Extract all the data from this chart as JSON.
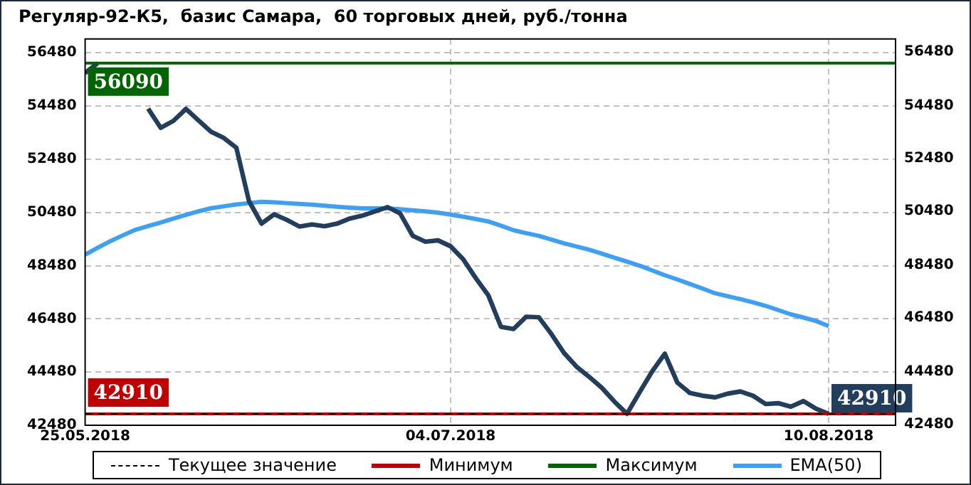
{
  "chart_data": {
    "type": "line",
    "title": "Регуляр-92-К5,  базис Самара,  60 торговых дней, руб./тонна",
    "categories": [
      "25.05.2018",
      null,
      null,
      null,
      null,
      null,
      null,
      null,
      null,
      null,
      null,
      null,
      null,
      null,
      null,
      null,
      null,
      null,
      null,
      null,
      null,
      null,
      null,
      null,
      null,
      null,
      null,
      null,
      null,
      "04.07.2018",
      null,
      null,
      null,
      null,
      null,
      null,
      null,
      null,
      null,
      null,
      null,
      null,
      null,
      null,
      null,
      null,
      null,
      null,
      null,
      null,
      null,
      null,
      null,
      null,
      null,
      null,
      null,
      null,
      null,
      "10.08.2018"
    ],
    "series": [
      {
        "color": "#233d5c",
        "values": [
          55720,
          56090,
          null,
          null,
          null,
          54380,
          53660,
          53920,
          54370,
          53940,
          53510,
          53280,
          52910,
          50910,
          50060,
          50410,
          50200,
          49950,
          50030,
          49960,
          50060,
          50250,
          50360,
          50520,
          50680,
          50440,
          49600,
          49380,
          49430,
          49210,
          48720,
          48010,
          47360,
          46180,
          46100,
          46560,
          46540,
          45910,
          45200,
          44680,
          44300,
          43890,
          43370,
          42910,
          43720,
          44510,
          45170,
          44080,
          43690,
          43590,
          43530,
          43670,
          43750,
          43590,
          43280,
          43310,
          43180,
          43390,
          43100,
          42910
        ]
      },
      {
        "name": "EMA(50)",
        "color": "#3d9ff5",
        "values": [
          48890,
          49150,
          49400,
          49620,
          49830,
          49970,
          50100,
          50250,
          50390,
          50520,
          50640,
          50710,
          50780,
          50830,
          50880,
          50860,
          50830,
          50800,
          50770,
          50730,
          50690,
          50660,
          50630,
          50630,
          50630,
          50600,
          50560,
          50520,
          50470,
          50400,
          50320,
          50230,
          50140,
          49980,
          49810,
          49700,
          49600,
          49460,
          49320,
          49200,
          49080,
          48930,
          48780,
          48630,
          48480,
          48300,
          48120,
          47960,
          47790,
          47620,
          47440,
          47330,
          47220,
          47100,
          46970,
          46810,
          46650,
          46530,
          46400,
          46210
        ]
      }
    ],
    "ref_lines": [
      {
        "axis": "y",
        "value": 42910,
        "label": "Минимум",
        "color": "#c00000"
      },
      {
        "axis": "y",
        "value": 56090,
        "label": "Максимум",
        "color": "#006400"
      },
      {
        "axis": "y",
        "value": 42910,
        "label": "Текущее значение",
        "color": "#000000",
        "line_style": "dashed"
      }
    ],
    "annotations": [
      {
        "text": "56090",
        "x": "25.05.2018",
        "y": 56090
      },
      {
        "text": "42910",
        "x": "25.05.2018",
        "y": 42910
      },
      {
        "text": "42910",
        "x": "10.08.2018",
        "y": 42910
      }
    ],
    "ylim": [
      42480,
      57000
    ],
    "yticks": [
      42480,
      44480,
      46480,
      48480,
      50480,
      52480,
      54480,
      56480
    ],
    "y2lim": [
      42480,
      57000
    ],
    "y2ticks": [
      42480,
      44480,
      46480,
      48480,
      50480,
      52480,
      54480,
      56480
    ],
    "grid": true,
    "legend": "bottom",
    "marker": "none",
    "line_style": "solid"
  }
}
